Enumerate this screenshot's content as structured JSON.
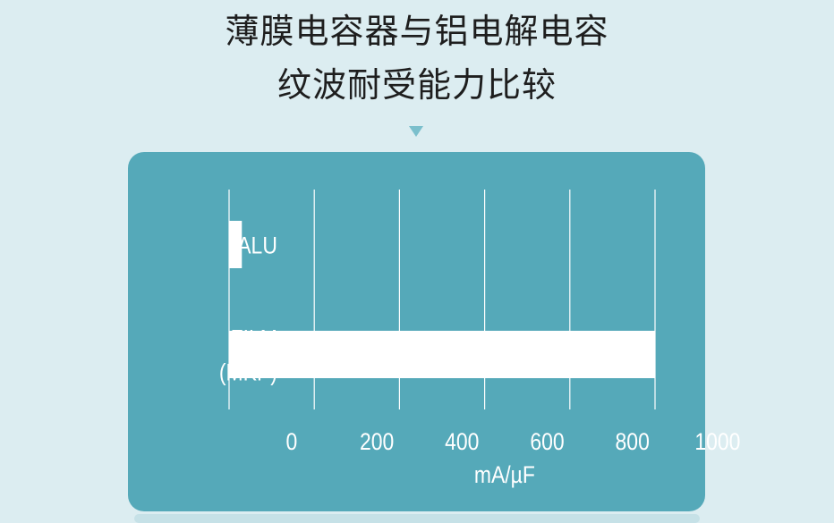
{
  "title_lines": [
    "薄膜电容器与铝电解电容",
    "纹波耐受能力比较"
  ],
  "colors": {
    "background": "#dcedf1",
    "panel": "#55a9b9",
    "bar": "#ffffff",
    "grid": "#ffffff",
    "title": "#1e1e1e"
  },
  "chart_data": {
    "type": "bar",
    "orientation": "horizontal",
    "categories": [
      "ALU",
      "FILM\n(MKP)"
    ],
    "category_lines": [
      [
        "ALU"
      ],
      [
        "FILM",
        "(MKP)"
      ]
    ],
    "values": [
      30,
      1000
    ],
    "xlabel": "mA/µF",
    "ylabel": "",
    "xlim": [
      0,
      1000
    ],
    "xticks": [
      0,
      200,
      400,
      600,
      800,
      1000
    ],
    "grid": true
  }
}
